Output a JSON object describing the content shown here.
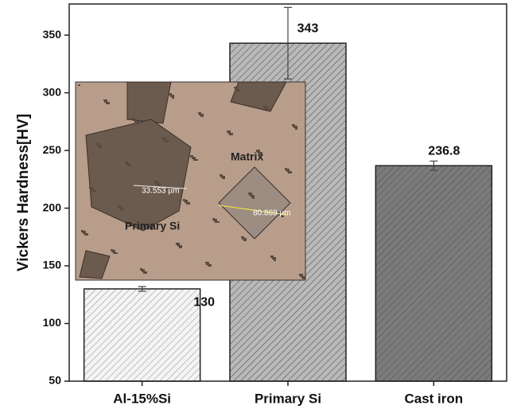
{
  "chart_data": {
    "type": "bar",
    "y_label": "Vickers Hardness[HV]",
    "categories": [
      "Al-15%Si",
      "Primary Si",
      "Cast iron"
    ],
    "values": [
      130,
      343,
      236.8
    ],
    "errors": [
      2,
      31,
      4
    ],
    "colors": [
      "#f4f4f4",
      "#b9b9b9",
      "#7b7b7b"
    ],
    "ylim": [
      50,
      377
    ],
    "yticks": [
      50,
      100,
      150,
      200,
      250,
      300,
      350
    ],
    "inset_labels": [
      "33.553 µm",
      "Matrix",
      "80.869 µm",
      "Primary Si"
    ]
  }
}
